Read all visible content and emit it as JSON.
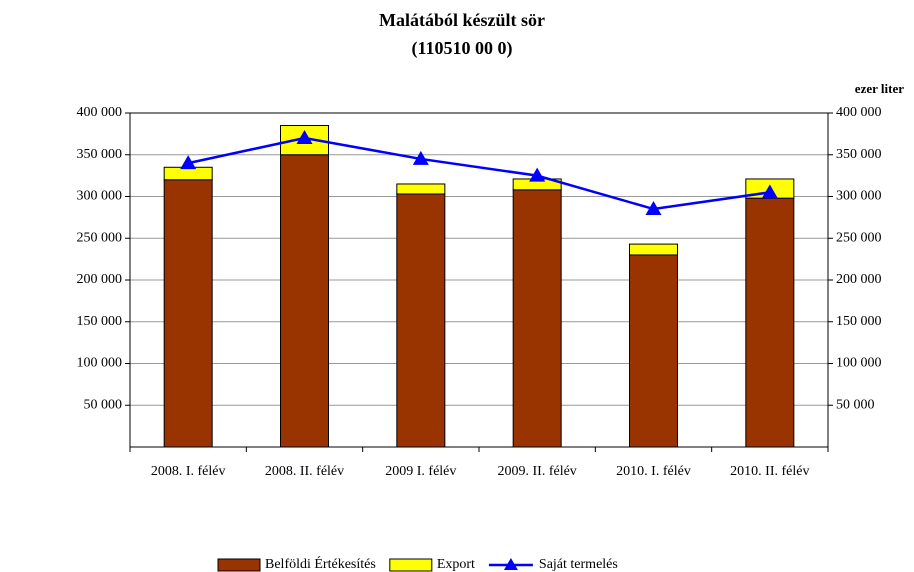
{
  "chart_data": {
    "type": "bar",
    "stacked": true,
    "title": [
      "Malátából készült sör",
      "(110510 00 0)"
    ],
    "unit_label": "ezer liter",
    "categories": [
      "2008. I. félév",
      "2008. II. félév",
      "2009 I. félév",
      "2009. II. félév",
      "2010. I. félév",
      "2010. II. félév"
    ],
    "series": [
      {
        "name": "Belföldi Értékesítés",
        "color": "#993300",
        "type": "bar",
        "values": [
          320000,
          350000,
          303000,
          308000,
          230000,
          298000
        ]
      },
      {
        "name": "Export",
        "color": "#ffff00",
        "type": "bar",
        "values": [
          15000,
          35000,
          12000,
          13000,
          13000,
          23000
        ]
      },
      {
        "name": "Saját termelés",
        "color": "#0000ff",
        "type": "line",
        "axis": "y2",
        "values": [
          340000,
          370000,
          345000,
          325000,
          285000,
          305000
        ]
      }
    ],
    "ylim": [
      0,
      400000
    ],
    "yticks": [
      {
        "value": 50000,
        "label": "50 000"
      },
      {
        "value": 100000,
        "label": "100 000"
      },
      {
        "value": 150000,
        "label": "150 000"
      },
      {
        "value": 200000,
        "label": "200 000"
      },
      {
        "value": 250000,
        "label": "250 000"
      },
      {
        "value": 300000,
        "label": "300 000"
      },
      {
        "value": 350000,
        "label": "350 000"
      },
      {
        "value": 400000,
        "label": "400 000"
      }
    ],
    "y2lim": [
      0,
      400000
    ],
    "y2ticks": [
      {
        "value": 50000,
        "label": "50 000"
      },
      {
        "value": 100000,
        "label": "100 000"
      },
      {
        "value": 150000,
        "label": "150 000"
      },
      {
        "value": 200000,
        "label": "200 000"
      },
      {
        "value": 250000,
        "label": "250 000"
      },
      {
        "value": 300000,
        "label": "300 000"
      },
      {
        "value": 350000,
        "label": "350 000"
      },
      {
        "value": 400000,
        "label": "400 000"
      }
    ],
    "grid": true,
    "legend": "bottom"
  }
}
